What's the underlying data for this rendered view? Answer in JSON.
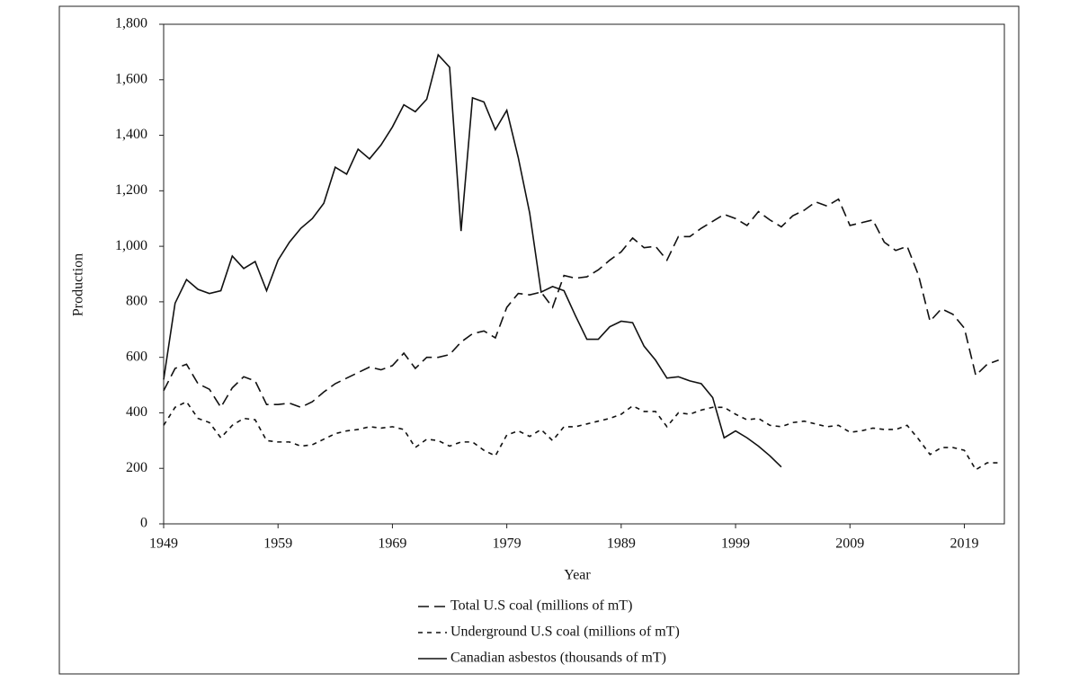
{
  "chart_data": {
    "type": "line",
    "x_label": "Year",
    "y_label": "Production",
    "x": [
      1949,
      1950,
      1951,
      1952,
      1953,
      1954,
      1955,
      1956,
      1957,
      1958,
      1959,
      1960,
      1961,
      1962,
      1963,
      1964,
      1965,
      1966,
      1967,
      1968,
      1969,
      1970,
      1971,
      1972,
      1973,
      1974,
      1975,
      1976,
      1977,
      1978,
      1979,
      1980,
      1981,
      1982,
      1983,
      1984,
      1985,
      1986,
      1987,
      1988,
      1989,
      1990,
      1991,
      1992,
      1993,
      1994,
      1995,
      1996,
      1997,
      1998,
      1999,
      2000,
      2001,
      2002,
      2003,
      2004,
      2005,
      2006,
      2007,
      2008,
      2009,
      2010,
      2011,
      2012,
      2013,
      2014,
      2015,
      2016,
      2017,
      2018,
      2019,
      2020,
      2021,
      2022
    ],
    "series": [
      {
        "name": "Total U.S coal (millions of mT)",
        "color": "#111111",
        "dash": "12,6",
        "values": [
          480,
          560,
          575,
          505,
          485,
          420,
          490,
          530,
          515,
          430,
          430,
          435,
          420,
          440,
          475,
          505,
          525,
          545,
          565,
          555,
          570,
          615,
          560,
          600,
          600,
          610,
          655,
          685,
          695,
          670,
          780,
          830,
          825,
          835,
          780,
          895,
          885,
          890,
          915,
          950,
          980,
          1030,
          995,
          1000,
          950,
          1035,
          1035,
          1065,
          1090,
          1115,
          1100,
          1075,
          1125,
          1095,
          1070,
          1110,
          1130,
          1160,
          1145,
          1170,
          1075,
          1085,
          1095,
          1015,
          985,
          1000,
          895,
          730,
          775,
          755,
          705,
          535,
          575,
          590
        ]
      },
      {
        "name": "Underground U.S coal (millions of mT)",
        "color": "#111111",
        "dash": "5,5",
        "values": [
          355,
          420,
          440,
          380,
          365,
          310,
          355,
          380,
          375,
          300,
          295,
          295,
          280,
          285,
          305,
          325,
          335,
          340,
          350,
          345,
          350,
          340,
          275,
          305,
          300,
          280,
          295,
          295,
          265,
          245,
          320,
          335,
          315,
          340,
          300,
          350,
          350,
          360,
          370,
          380,
          395,
          425,
          405,
          405,
          350,
          400,
          395,
          410,
          420,
          420,
          395,
          375,
          380,
          355,
          350,
          365,
          370,
          360,
          350,
          355,
          330,
          335,
          345,
          340,
          340,
          355,
          305,
          250,
          275,
          275,
          265,
          195,
          220,
          220
        ]
      },
      {
        "name": "Canadian asbestos (thousands of mT)",
        "color": "#111111",
        "dash": "none",
        "values": [
          520,
          795,
          880,
          845,
          830,
          840,
          965,
          920,
          945,
          840,
          950,
          1015,
          1065,
          1100,
          1155,
          1285,
          1260,
          1350,
          1315,
          1365,
          1430,
          1510,
          1485,
          1530,
          1690,
          1645,
          1055,
          1535,
          1520,
          1420,
          1490,
          1320,
          1120,
          835,
          855,
          840,
          750,
          665,
          665,
          710,
          730,
          725,
          640,
          590,
          525,
          530,
          515,
          505,
          455,
          310,
          335,
          310,
          280,
          245,
          205,
          null,
          null,
          null,
          null,
          null,
          null,
          null,
          null,
          null,
          null,
          null,
          null,
          null,
          null,
          null,
          null,
          null,
          null,
          null
        ]
      }
    ],
    "xlim": [
      1949,
      2022.5
    ],
    "xticks": [
      1949,
      1959,
      1969,
      1979,
      1989,
      1999,
      2009,
      2019
    ],
    "ylim": [
      0,
      1800
    ],
    "yticks": [
      0,
      200,
      400,
      600,
      800,
      {
        "value": 1000,
        "label": "1,000"
      },
      {
        "value": 1200,
        "label": "1,200"
      },
      {
        "value": 1400,
        "label": "1,400"
      },
      {
        "value": 1600,
        "label": "1,600"
      },
      {
        "value": 1800,
        "label": "1,800"
      }
    ],
    "legend": "bottom",
    "grid": false
  }
}
